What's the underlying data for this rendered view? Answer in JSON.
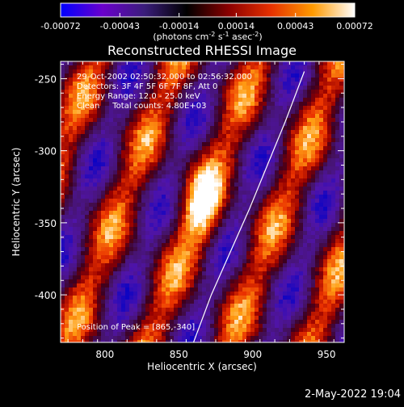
{
  "chart_data": {
    "type": "heatmap",
    "title": "Reconstructed RHESSI Image",
    "xlabel": "Heliocentric X (arcsec)",
    "ylabel": "Heliocentric Y (arcsec)",
    "xlim": [
      770,
      962
    ],
    "ylim": [
      -433,
      -238
    ],
    "xticks": [
      800,
      850,
      900,
      950
    ],
    "yticks": [
      -400,
      -350,
      -300,
      -250
    ],
    "colorbar": {
      "ticks": [
        "-0.00072",
        "-0.00043",
        "-0.00014",
        "0.00014",
        "0.00043",
        "0.00072"
      ],
      "range": [
        -0.00072,
        0.00072
      ],
      "unit_label": {
        "pre": "(photons cm",
        "exp1": "-2",
        "mid1": " s",
        "exp2": "-1",
        "mid2": " asec",
        "exp3": "-2",
        "post": ")"
      },
      "colors": [
        "#0000ff",
        "#6a00cc",
        "#3a1d7a",
        "#000000",
        "#8a0000",
        "#e63000",
        "#ff9a00",
        "#ffffff"
      ]
    },
    "annotations": [
      "29-Oct-2002 02:50:32.000 to 02:56:32.000",
      "Detectors: 3F 4F 5F 6F 7F 8F, Att 0",
      "Energy Range: 12.0 - 25.0 keV",
      "Clean     Total counts: 4.80E+03"
    ],
    "peak_label": "Position of Peak = [865,-340]",
    "peak": {
      "x": 865,
      "y": -340
    },
    "limb_curve": [
      [
        860,
        -433
      ],
      [
        872,
        -400
      ],
      [
        885,
        -370
      ],
      [
        898,
        -340
      ],
      [
        910,
        -310
      ],
      [
        922,
        -280
      ],
      [
        935,
        -245
      ]
    ]
  },
  "footer": {
    "timestamp": "2-May-2022 19:04"
  }
}
